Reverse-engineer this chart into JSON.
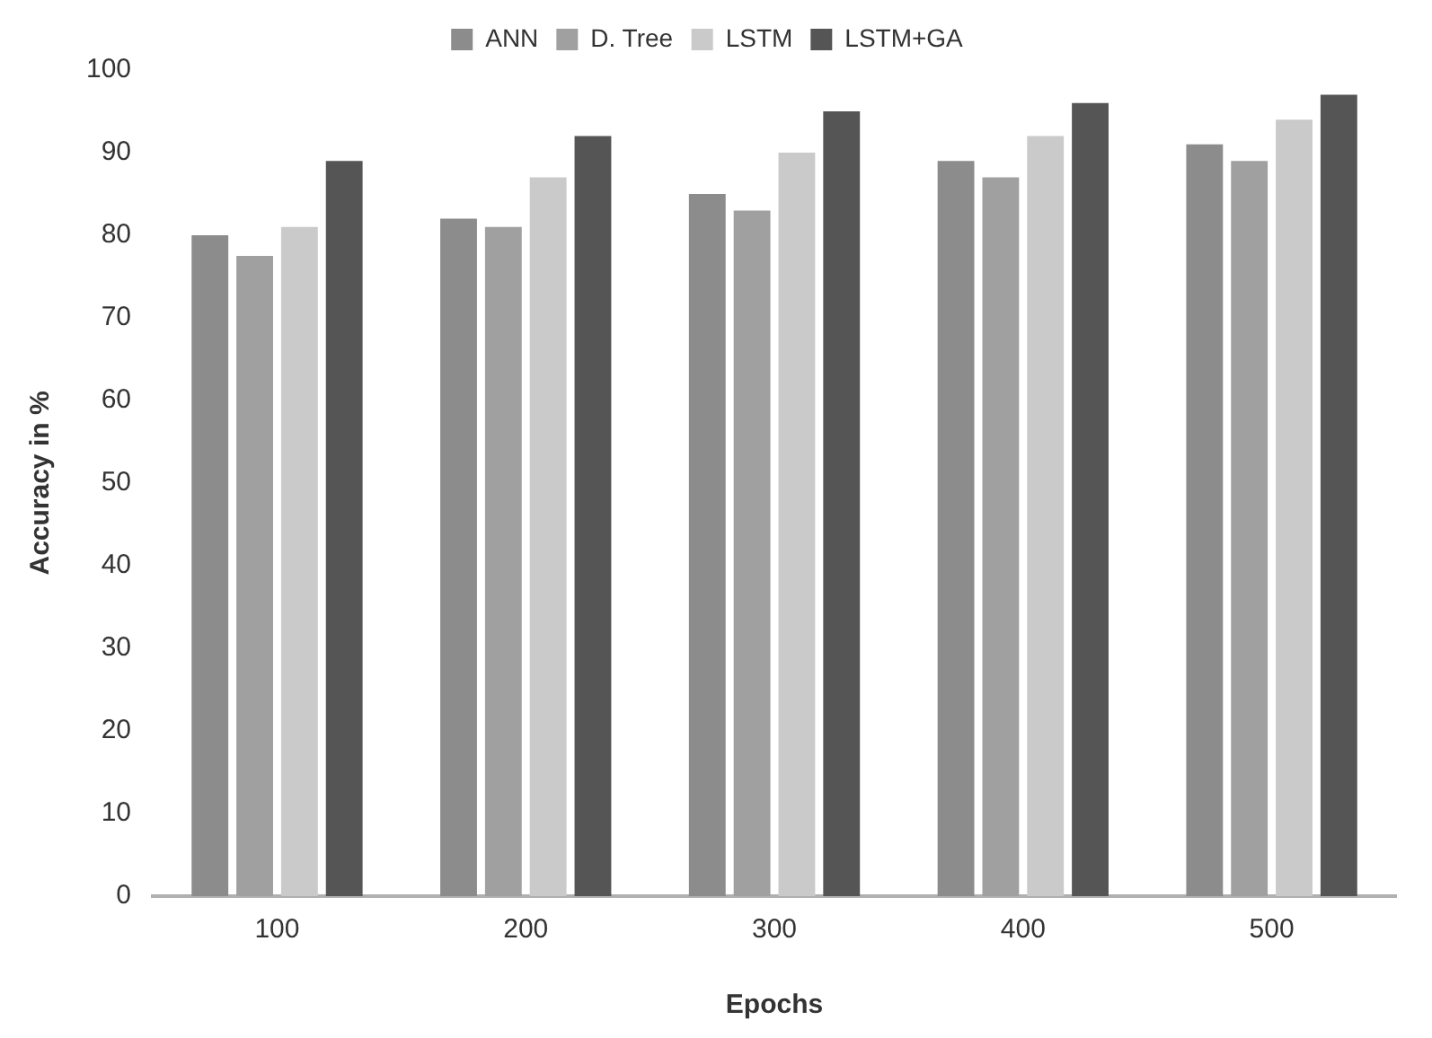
{
  "chart_data": {
    "type": "bar",
    "xlabel": "Epochs",
    "ylabel": "Accuracy in %",
    "categories": [
      "100",
      "200",
      "300",
      "400",
      "500"
    ],
    "series": [
      {
        "name": "ANN",
        "color": "#8c8c8c",
        "values": [
          80,
          82,
          85,
          89,
          91
        ]
      },
      {
        "name": "D. Tree",
        "color": "#a0a0a0",
        "values": [
          77.5,
          81,
          83,
          87,
          89
        ]
      },
      {
        "name": "LSTM",
        "color": "#cacaca",
        "values": [
          81,
          87,
          90,
          92,
          94
        ]
      },
      {
        "name": "LSTM+GA",
        "color": "#555555",
        "values": [
          89,
          92,
          95,
          96,
          97
        ]
      }
    ],
    "ylim": [
      0,
      100
    ],
    "yticks": [
      0,
      10,
      20,
      30,
      40,
      50,
      60,
      70,
      80,
      90,
      100
    ],
    "grid": false,
    "legend": "top"
  }
}
